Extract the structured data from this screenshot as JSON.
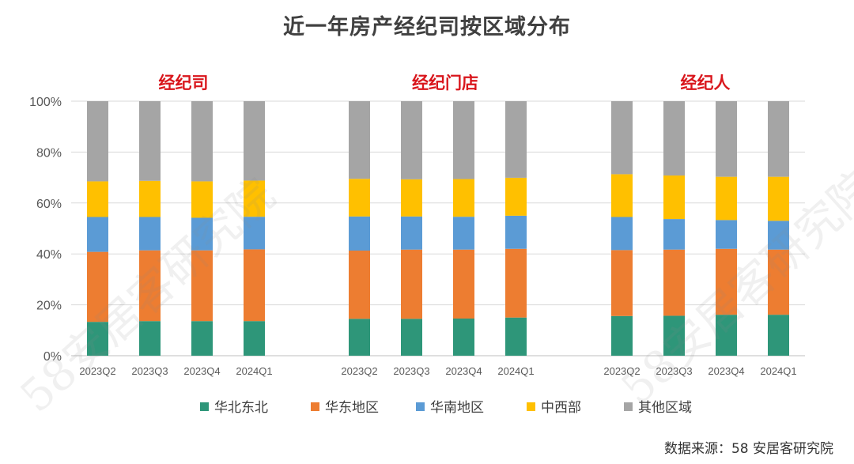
{
  "title": "近一年房产经纪司按区域分布",
  "source": "数据来源：58 安居客研究院",
  "watermark": "58安居客研究院",
  "chart_data": {
    "type": "stacked-bar",
    "y_ticks": [
      "100%",
      "80%",
      "60%",
      "40%",
      "20%",
      "0%"
    ],
    "ylim": [
      0,
      100
    ],
    "grid": true,
    "legend_position": "bottom",
    "series": [
      {
        "name": "华北东北",
        "color": "#2e9679"
      },
      {
        "name": "华东地区",
        "color": "#ed7d31"
      },
      {
        "name": "华南地区",
        "color": "#5b9bd5"
      },
      {
        "name": "中西部",
        "color": "#ffc000"
      },
      {
        "name": "其他区域",
        "color": "#a5a5a5"
      }
    ],
    "groups": [
      {
        "title": "经纪司",
        "categories": [
          "2023Q2",
          "2023Q3",
          "2023Q4",
          "2024Q1"
        ],
        "data": [
          [
            13.3,
            27.5,
            13.7,
            14.0,
            31.5
          ],
          [
            13.6,
            27.8,
            13.1,
            14.2,
            31.3
          ],
          [
            13.6,
            27.8,
            12.8,
            14.3,
            31.5
          ],
          [
            13.6,
            28.2,
            12.8,
            14.2,
            31.2
          ]
        ]
      },
      {
        "title": "经纪门店",
        "categories": [
          "2023Q2",
          "2023Q3",
          "2023Q4",
          "2024Q1"
        ],
        "data": [
          [
            14.5,
            26.8,
            13.4,
            14.8,
            30.5
          ],
          [
            14.5,
            27.2,
            13.0,
            14.6,
            30.7
          ],
          [
            14.6,
            27.1,
            12.9,
            14.8,
            30.6
          ],
          [
            15.0,
            27.0,
            13.0,
            14.9,
            30.1
          ]
        ]
      },
      {
        "title": "经纪人",
        "categories": [
          "2023Q2",
          "2023Q3",
          "2023Q4",
          "2024Q1"
        ],
        "data": [
          [
            15.6,
            25.9,
            13.0,
            16.8,
            28.7
          ],
          [
            15.7,
            26.0,
            12.0,
            17.1,
            29.2
          ],
          [
            16.1,
            25.9,
            11.3,
            17.0,
            29.7
          ],
          [
            16.1,
            25.6,
            11.3,
            17.3,
            29.7
          ]
        ]
      }
    ]
  }
}
